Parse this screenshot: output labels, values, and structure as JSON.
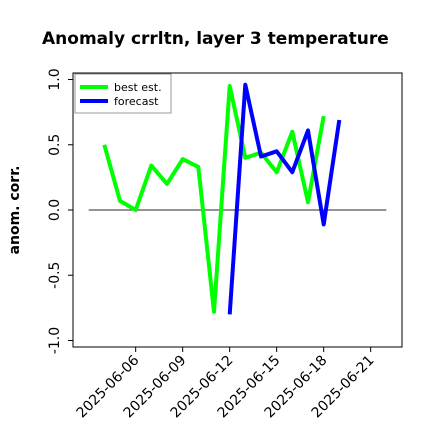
{
  "chart_data": {
    "type": "line",
    "title": "Anomaly crrltn, layer 3 temperature",
    "xlabel": "",
    "ylabel": "anom. corr.",
    "ylim": [
      -1.05,
      1.05
    ],
    "xlim": [
      "2025-06-02",
      "2025-06-23"
    ],
    "yticks": [
      -1.0,
      -0.5,
      0.0,
      0.5,
      1.0
    ],
    "ytick_labels": [
      "-1.0",
      "-0.5",
      "0.0",
      "0.5",
      "1.0"
    ],
    "xticks": [
      "2025-06-06",
      "2025-06-09",
      "2025-06-12",
      "2025-06-15",
      "2025-06-18",
      "2025-06-21"
    ],
    "highlight_tick": "2025-06-12",
    "highlight_color": "#228b22",
    "reference_line": 0.0,
    "legend_position": "top-left",
    "grid": false,
    "series": [
      {
        "name": "best est.",
        "color": "#00ff00",
        "x": [
          "2025-06-04",
          "2025-06-05",
          "2025-06-06",
          "2025-06-07",
          "2025-06-08",
          "2025-06-09",
          "2025-06-10",
          "2025-06-11",
          "2025-06-12",
          "2025-06-13",
          "2025-06-14",
          "2025-06-15",
          "2025-06-16",
          "2025-06-17",
          "2025-06-18",
          "2025-06-19"
        ],
        "y": [
          0.5,
          0.07,
          0.0,
          0.34,
          0.2,
          0.39,
          0.33,
          -0.78,
          0.95,
          0.4,
          0.44,
          0.29,
          0.6,
          0.06,
          0.72,
          null
        ]
      },
      {
        "name": "forecast",
        "color": "#0000ff",
        "x": [
          "2025-06-12",
          "2025-06-13",
          "2025-06-14",
          "2025-06-15",
          "2025-06-16",
          "2025-06-17",
          "2025-06-18",
          "2025-06-19"
        ],
        "y": [
          -0.8,
          0.96,
          0.41,
          0.45,
          0.29,
          0.61,
          -0.11,
          0.69
        ]
      }
    ]
  }
}
